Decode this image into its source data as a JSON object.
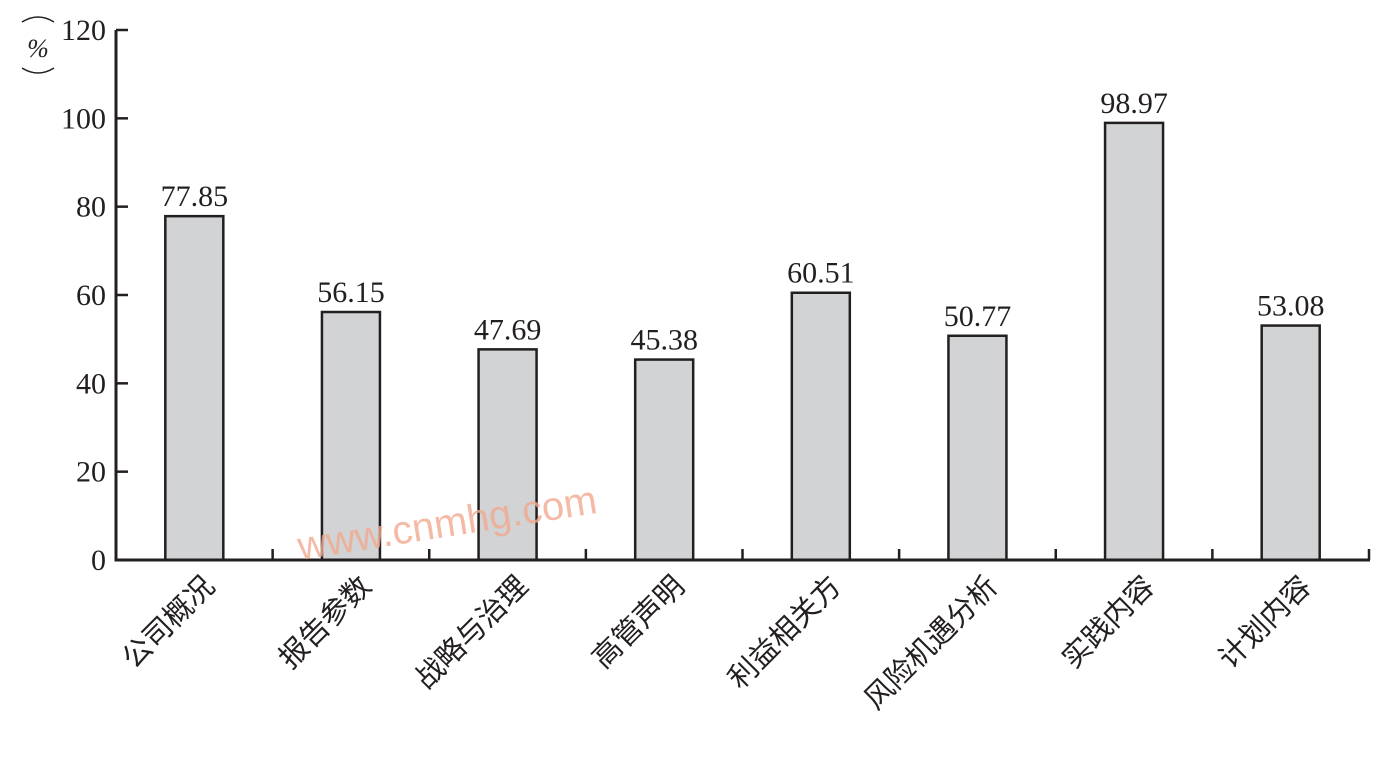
{
  "chart_data": {
    "type": "bar",
    "categories": [
      "公司概况",
      "报告参数",
      "战略与治理",
      "高管声明",
      "利益相关方",
      "风险机遇分析",
      "实践内容",
      "计划内容"
    ],
    "values": [
      77.85,
      56.15,
      47.69,
      45.38,
      60.51,
      50.77,
      98.97,
      53.08
    ],
    "data_labels": [
      "77.85",
      "56.15",
      "47.69",
      "45.38",
      "60.51",
      "50.77",
      "98.97",
      "53.08"
    ],
    "ylabel": "%",
    "ylim": [
      0,
      120
    ],
    "yticks": [
      "0",
      "20",
      "40",
      "60",
      "80",
      "100",
      "120"
    ],
    "grid": false,
    "legend": "none",
    "bar_color": "#d1d3d4",
    "bar_edge_color": "#231f20"
  },
  "watermark": "www.cnmhg.com"
}
